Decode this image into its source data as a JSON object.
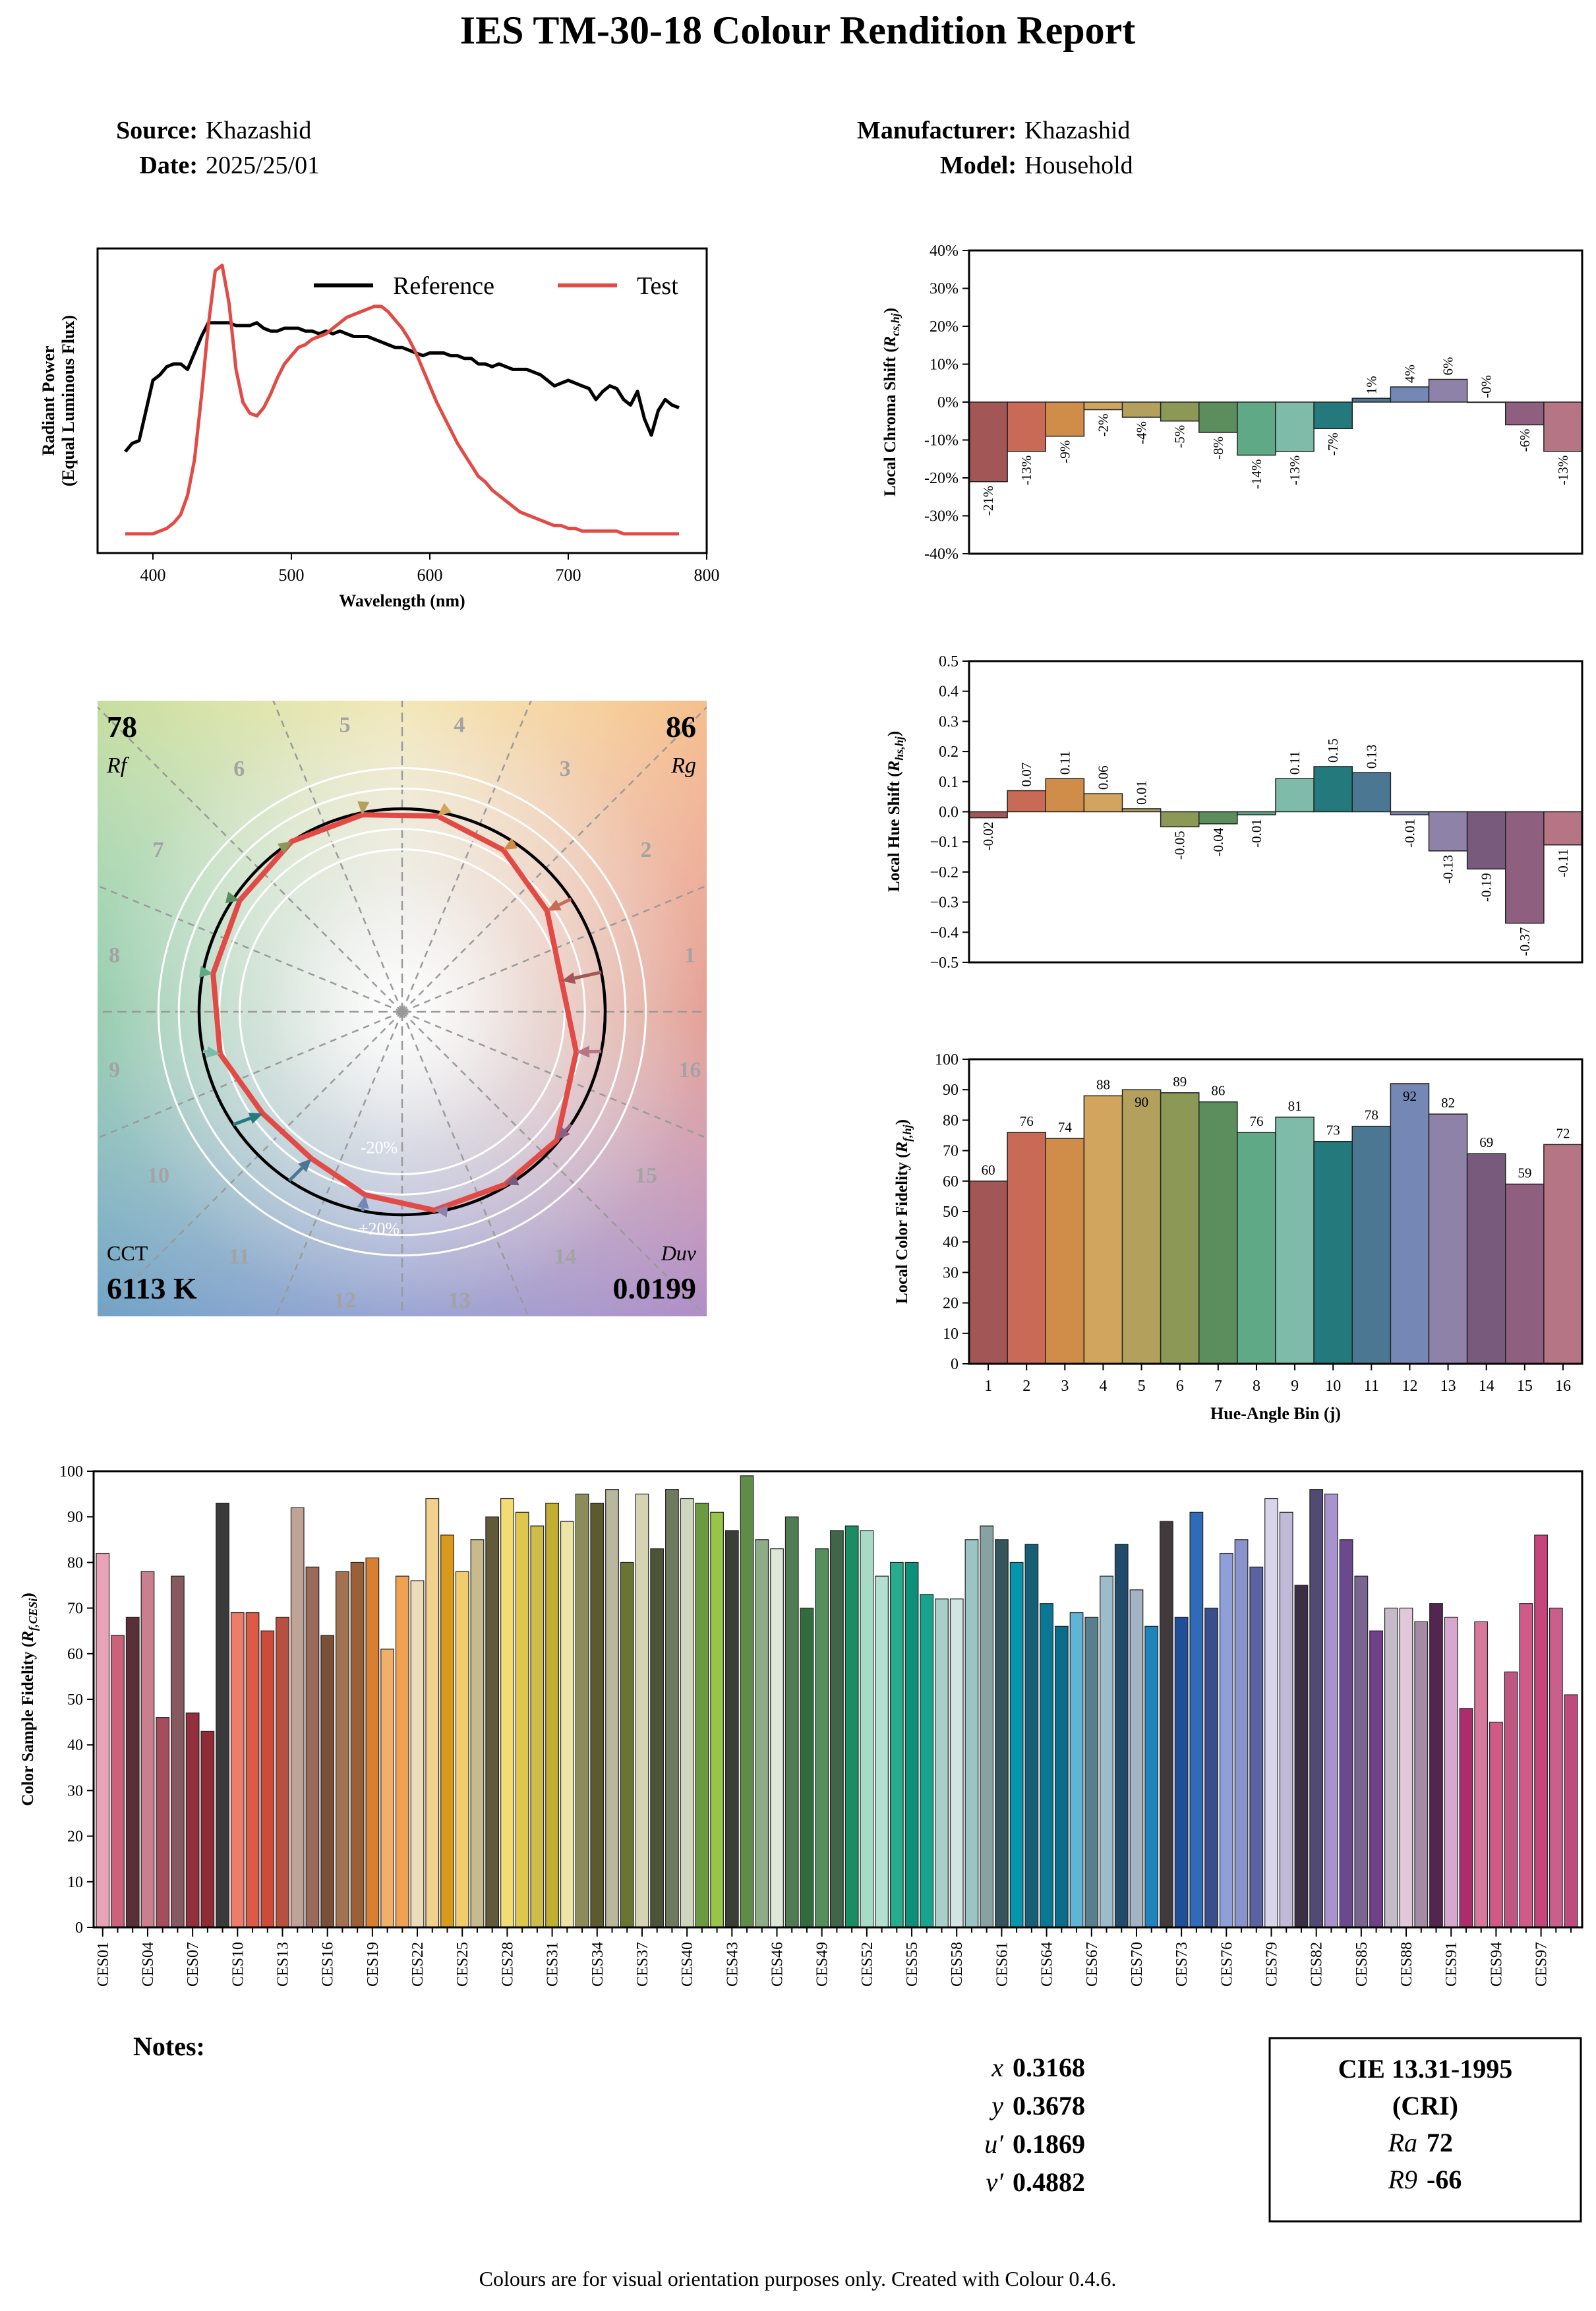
{
  "title": "IES TM-30-18 Colour Rendition Report",
  "header": {
    "source_label": "Source:",
    "source": "Khazashid",
    "date_label": "Date:",
    "date": "2025/25/01",
    "manufacturer_label": "Manufacturer:",
    "manufacturer": "Khazashid",
    "model_label": "Model:",
    "model": "Household"
  },
  "colors": {
    "reference": "#000000",
    "test": "#e24a45",
    "hue_bins": [
      "#a35656",
      "#c86a55",
      "#d08c49",
      "#d2a55e",
      "#b2a05c",
      "#8b9856",
      "#5b8e5c",
      "#5fa986",
      "#7ebba8",
      "#23797b",
      "#4b7792",
      "#7487b5",
      "#8f82a9",
      "#775a7c",
      "#8f5f7f",
      "#b57584"
    ]
  },
  "chart_data": [
    {
      "type": "line",
      "xlabel": "Wavelength (nm)",
      "ylabel": "Radiant Power\n(Equal Luminous Flux)",
      "xlim": [
        360,
        800
      ],
      "xticks": [
        "400",
        "500",
        "600",
        "700",
        "800"
      ],
      "legend": "top",
      "series": [
        {
          "name": "Reference",
          "x": [
            380,
            385,
            390,
            395,
            400,
            405,
            410,
            415,
            420,
            425,
            430,
            435,
            440,
            445,
            450,
            455,
            460,
            465,
            470,
            475,
            480,
            485,
            490,
            495,
            500,
            505,
            510,
            515,
            520,
            525,
            530,
            535,
            540,
            545,
            550,
            555,
            560,
            565,
            570,
            575,
            580,
            585,
            590,
            595,
            600,
            605,
            610,
            615,
            620,
            625,
            630,
            635,
            640,
            645,
            650,
            655,
            660,
            665,
            670,
            675,
            680,
            685,
            690,
            695,
            700,
            705,
            710,
            715,
            720,
            725,
            730,
            735,
            740,
            745,
            750,
            755,
            760,
            765,
            770,
            775,
            780
          ],
          "y": [
            0.32,
            0.35,
            0.36,
            0.47,
            0.58,
            0.6,
            0.63,
            0.64,
            0.64,
            0.62,
            0.68,
            0.74,
            0.79,
            0.79,
            0.79,
            0.79,
            0.78,
            0.78,
            0.78,
            0.79,
            0.77,
            0.76,
            0.76,
            0.77,
            0.77,
            0.77,
            0.76,
            0.76,
            0.75,
            0.76,
            0.75,
            0.76,
            0.75,
            0.74,
            0.74,
            0.74,
            0.73,
            0.72,
            0.71,
            0.7,
            0.7,
            0.69,
            0.68,
            0.67,
            0.68,
            0.68,
            0.68,
            0.67,
            0.67,
            0.66,
            0.66,
            0.64,
            0.64,
            0.63,
            0.64,
            0.63,
            0.62,
            0.62,
            0.62,
            0.61,
            0.6,
            0.58,
            0.56,
            0.57,
            0.58,
            0.57,
            0.56,
            0.55,
            0.51,
            0.54,
            0.56,
            0.55,
            0.51,
            0.49,
            0.54,
            0.44,
            0.38,
            0.47,
            0.51,
            0.49,
            0.48
          ]
        },
        {
          "name": "Test",
          "x": [
            380,
            385,
            390,
            395,
            400,
            405,
            410,
            415,
            420,
            425,
            430,
            435,
            440,
            445,
            450,
            455,
            460,
            465,
            470,
            475,
            480,
            485,
            490,
            495,
            500,
            505,
            510,
            515,
            520,
            525,
            530,
            535,
            540,
            545,
            550,
            555,
            560,
            565,
            570,
            575,
            580,
            585,
            590,
            595,
            600,
            605,
            610,
            615,
            620,
            625,
            630,
            635,
            640,
            645,
            650,
            655,
            660,
            665,
            670,
            675,
            680,
            685,
            690,
            695,
            700,
            705,
            710,
            715,
            720,
            725,
            730,
            735,
            740,
            745,
            750,
            755,
            760,
            765,
            770,
            775,
            780
          ],
          "y": [
            0.02,
            0.02,
            0.02,
            0.02,
            0.02,
            0.03,
            0.04,
            0.06,
            0.09,
            0.16,
            0.29,
            0.52,
            0.78,
            0.98,
            1.0,
            0.86,
            0.62,
            0.5,
            0.46,
            0.45,
            0.48,
            0.53,
            0.59,
            0.64,
            0.67,
            0.7,
            0.71,
            0.73,
            0.74,
            0.75,
            0.77,
            0.79,
            0.81,
            0.82,
            0.83,
            0.84,
            0.85,
            0.85,
            0.83,
            0.8,
            0.77,
            0.73,
            0.68,
            0.62,
            0.56,
            0.5,
            0.45,
            0.4,
            0.35,
            0.31,
            0.27,
            0.23,
            0.21,
            0.18,
            0.16,
            0.14,
            0.12,
            0.1,
            0.09,
            0.08,
            0.07,
            0.06,
            0.05,
            0.05,
            0.04,
            0.04,
            0.03,
            0.03,
            0.03,
            0.03,
            0.03,
            0.03,
            0.02,
            0.02,
            0.02,
            0.02,
            0.02,
            0.02,
            0.02,
            0.02,
            0.02
          ]
        }
      ]
    },
    {
      "type": "bar",
      "ylabel": "Local Chroma Shift (R_cs,hj)",
      "ylim": [
        -0.4,
        0.4
      ],
      "yticks": [
        "-40%",
        "-30%",
        "-20%",
        "-10%",
        "0%",
        "10%",
        "20%",
        "30%",
        "40%"
      ],
      "values": [
        -0.21,
        -0.13,
        -0.09,
        -0.02,
        -0.04,
        -0.05,
        -0.08,
        -0.14,
        -0.13,
        -0.07,
        0.01,
        0.04,
        0.06,
        0,
        -0.06,
        -0.13
      ],
      "labels": [
        "-21%",
        "-13%",
        "-9%",
        "-2%",
        "-4%",
        "-5%",
        "-8%",
        "-14%",
        "-13%",
        "-7%",
        "1%",
        "4%",
        "6%",
        "-0%",
        "-6%",
        "-13%"
      ]
    },
    {
      "type": "bar",
      "ylabel": "Local Hue Shift (R_hs,hj)",
      "ylim": [
        -0.5,
        0.5
      ],
      "yticks": [
        "−0.5",
        "−0.4",
        "−0.3",
        "−0.2",
        "−0.1",
        "0.0",
        "0.1",
        "0.2",
        "0.3",
        "0.4",
        "0.5"
      ],
      "values": [
        -0.02,
        0.07,
        0.11,
        0.06,
        0.01,
        -0.05,
        -0.04,
        -0.01,
        0.11,
        0.15,
        0.13,
        -0.01,
        -0.13,
        -0.19,
        -0.37,
        -0.11
      ],
      "labels": [
        "-0.02",
        "0.07",
        "0.11",
        "0.06",
        "0.01",
        "-0.05",
        "-0.04",
        "-0.01",
        "0.11",
        "0.15",
        "0.13",
        "-0.01",
        "-0.13",
        "-0.19",
        "-0.37",
        "-0.11"
      ]
    },
    {
      "type": "bar",
      "xlabel": "Hue-Angle Bin (j)",
      "ylabel": "Local Color Fidelity (R_f,hj)",
      "ylim": [
        0,
        100
      ],
      "yticks": [
        "0",
        "10",
        "20",
        "30",
        "40",
        "50",
        "60",
        "70",
        "80",
        "90",
        "100"
      ],
      "categories": [
        "1",
        "2",
        "3",
        "4",
        "5",
        "6",
        "7",
        "8",
        "9",
        "10",
        "11",
        "12",
        "13",
        "14",
        "15",
        "16"
      ],
      "values": [
        60,
        76,
        74,
        88,
        90,
        89,
        86,
        76,
        81,
        73,
        78,
        92,
        82,
        69,
        59,
        72
      ]
    },
    {
      "type": "bar",
      "ylabel": "Color Sample Fidelity (R_f,CESi)",
      "ylim": [
        0,
        100
      ],
      "yticks": [
        "0",
        "10",
        "20",
        "30",
        "40",
        "50",
        "60",
        "70",
        "80",
        "90",
        "100"
      ],
      "tick_labels": [
        "CES01",
        "CES04",
        "CES07",
        "CES10",
        "CES13",
        "CES16",
        "CES19",
        "CES22",
        "CES25",
        "CES28",
        "CES31",
        "CES34",
        "CES37",
        "CES40",
        "CES43",
        "CES46",
        "CES49",
        "CES52",
        "CES55",
        "CES58",
        "CES61",
        "CES64",
        "CES67",
        "CES70",
        "CES73",
        "CES76",
        "CES79",
        "CES82",
        "CES85",
        "CES88",
        "CES91",
        "CES94",
        "CES97"
      ],
      "values": [
        82,
        64,
        68,
        78,
        46,
        77,
        47,
        43,
        93,
        69,
        69,
        65,
        68,
        92,
        79,
        64,
        78,
        80,
        81,
        61,
        77,
        76,
        94,
        86,
        78,
        85,
        90,
        94,
        91,
        88,
        93,
        89,
        95,
        93,
        96,
        80,
        95,
        83,
        96,
        94,
        93,
        91,
        87,
        99,
        85,
        83,
        90,
        70,
        83,
        87,
        88,
        87,
        77,
        80,
        80,
        73,
        72,
        72,
        85,
        88,
        85,
        80,
        84,
        71,
        66,
        69,
        68,
        77,
        84,
        74,
        66,
        89,
        68,
        91,
        70,
        82,
        85,
        79,
        94,
        91,
        75,
        96,
        95,
        85,
        77,
        65,
        70,
        70,
        67,
        71,
        68,
        48,
        67,
        45,
        56,
        71,
        86,
        70,
        51
      ],
      "colors": [
        "#e8a3b8",
        "#c9627a",
        "#5a3038",
        "#c97f8e",
        "#a54c5e",
        "#875a62",
        "#94303e",
        "#8f2b36",
        "#3a3a3a",
        "#ef7b6a",
        "#dd5a49",
        "#cc4b3b",
        "#b7513f",
        "#bfa395",
        "#9c6a5a",
        "#7a5039",
        "#a2714f",
        "#9b6038",
        "#d97f31",
        "#f0b06a",
        "#f0a252",
        "#ecdcb9",
        "#f2d08e",
        "#d99a1c",
        "#f0cc6c",
        "#c7bb8e",
        "#605a3a",
        "#f4dc74",
        "#dfc64c",
        "#cfbd4a",
        "#c2ae33",
        "#ece5a6",
        "#8c8c5a",
        "#5c5a2e",
        "#b9b79e",
        "#6b7532",
        "#d5d4b2",
        "#4c5438",
        "#6e7a5e",
        "#cfd6bf",
        "#6c9a41",
        "#98c448",
        "#3a3f36",
        "#5f8d48",
        "#8eac85",
        "#dde7d5",
        "#507c54",
        "#316c3c",
        "#54905e",
        "#3f6648",
        "#1a8e62",
        "#a8dbc6",
        "#b4e0d2",
        "#27ad8c",
        "#0d8f78",
        "#17a38c",
        "#a8cfc8",
        "#d2e5e2",
        "#9cc4c4",
        "#88a2a2",
        "#34565a",
        "#0794ad",
        "#165f74",
        "#0a7895",
        "#0a6d8c",
        "#5fb5d8",
        "#597e8e",
        "#9cbccb",
        "#204b6a",
        "#a4b4c4",
        "#1f84bd",
        "#403a3c",
        "#1f4f9b",
        "#2f6bb8",
        "#3b4e8c",
        "#8f9fd9",
        "#8b93cc",
        "#5a63a2",
        "#d8d5eb",
        "#c1b9d8",
        "#3a3045",
        "#514b74",
        "#a893cf",
        "#6a4a8c",
        "#7a6591",
        "#6f3f88",
        "#c4bac8",
        "#e0c8d8",
        "#a48aa3",
        "#53264f",
        "#d7a8cf",
        "#ab2d6e",
        "#d8799b",
        "#d05a85",
        "#c15582",
        "#d05b88",
        "#c6457a",
        "#cb5f8b",
        "#be4b7c"
      ]
    }
  ],
  "polar": {
    "rf_value": "78",
    "rf_label": "Rf",
    "rg_value": "86",
    "rg_label": "Rg",
    "cct_label": "CCT",
    "cct_value": "6113 K",
    "duv_label": "Duv",
    "duv_value": "0.0199",
    "bin_labels": [
      "1",
      "2",
      "3",
      "4",
      "5",
      "6",
      "7",
      "8",
      "9",
      "10",
      "11",
      "12",
      "13",
      "14",
      "15",
      "16"
    ],
    "ring_labels": [
      "-20%",
      "+20%"
    ],
    "test_radii": [
      0.8,
      0.87,
      0.94,
      0.98,
      0.99,
      1.0,
      0.97,
      0.95,
      0.92,
      0.85,
      0.85,
      0.92,
      0.99,
      0.99,
      0.99,
      0.88
    ],
    "test_hue_shifts": [
      -0.02,
      0.07,
      0.11,
      0.06,
      0.01,
      -0.05,
      -0.04,
      -0.01,
      0.11,
      0.15,
      0.13,
      -0.01,
      -0.13,
      -0.19,
      -0.37,
      -0.11
    ]
  },
  "notes_label": "Notes:",
  "chromaticity": [
    {
      "sym": "x",
      "value": "0.3168"
    },
    {
      "sym": "y",
      "value": "0.3678"
    },
    {
      "sym": "u′",
      "value": "0.1869"
    },
    {
      "sym": "v′",
      "value": "0.4882"
    }
  ],
  "cri": {
    "title": "CIE 13.31-1995",
    "subtitle": "(CRI)",
    "ra_label": "Ra",
    "ra_value": "72",
    "r9_label": "R9",
    "r9_value": "-66"
  },
  "footer": "Colours are for visual orientation purposes only. Created with Colour 0.4.6."
}
